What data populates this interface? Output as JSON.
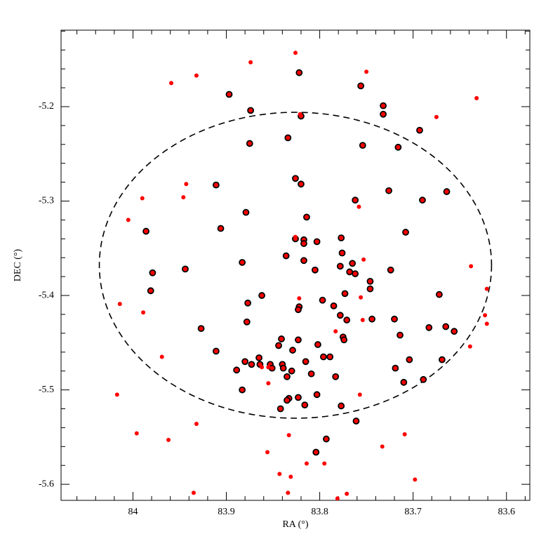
{
  "chart_data": {
    "type": "scatter",
    "x_label": "RA  (°)",
    "y_label": "DEC (°)",
    "xlim": [
      84.077,
      83.575
    ],
    "ylim": [
      -5.617,
      -5.119
    ],
    "xticks": [
      84,
      83.9,
      83.8,
      83.7,
      83.6
    ],
    "yticks": [
      -5.2,
      -5.3,
      -5.4,
      -5.5,
      -5.6
    ],
    "circle": {
      "center": [
        83.826,
        -5.368
      ],
      "radius_x": 0.21,
      "radius_y": 0.162,
      "color": "#000000",
      "dashed": true
    },
    "series": [
      {
        "color": "#ff0000",
        "edgecolor": "#000000",
        "x": [
          83.897,
          83.874,
          83.822,
          83.82,
          83.756,
          83.732,
          83.732,
          83.875,
          83.834,
          83.754,
          83.716,
          83.693,
          83.826,
          83.82,
          83.911,
          83.879,
          83.906,
          83.814,
          83.762,
          83.726,
          83.69,
          83.664,
          83.986,
          83.708,
          83.979,
          83.944,
          83.981,
          83.826,
          83.817,
          83.817,
          83.803,
          83.836,
          83.817,
          83.805,
          83.777,
          83.776,
          83.778,
          83.765,
          83.768,
          83.762,
          83.746,
          83.746,
          83.724,
          83.773,
          83.797,
          83.785,
          83.72,
          83.883,
          83.877,
          83.862,
          83.822,
          83.823,
          83.927,
          83.878,
          83.911,
          83.778,
          83.771,
          83.775,
          83.774,
          83.744,
          83.714,
          83.683,
          83.665,
          83.656,
          83.672,
          83.704,
          83.669,
          83.719,
          83.71,
          83.689,
          83.802,
          83.823,
          83.829,
          83.841,
          83.844,
          83.889,
          83.88,
          83.865,
          83.864,
          83.853,
          83.851,
          83.873,
          83.815,
          83.84,
          83.839,
          83.835,
          83.83,
          83.809,
          83.796,
          83.789,
          83.783,
          83.803,
          83.833,
          83.835,
          83.823,
          83.816,
          83.842,
          83.777,
          83.883,
          83.761,
          83.793,
          83.804
        ],
        "y": [
          -5.187,
          -5.204,
          -5.164,
          -5.21,
          -5.178,
          -5.208,
          -5.199,
          -5.239,
          -5.233,
          -5.241,
          -5.243,
          -5.225,
          -5.276,
          -5.282,
          -5.283,
          -5.312,
          -5.329,
          -5.317,
          -5.299,
          -5.289,
          -5.299,
          -5.29,
          -5.332,
          -5.333,
          -5.376,
          -5.372,
          -5.395,
          -5.34,
          -5.341,
          -5.345,
          -5.343,
          -5.358,
          -5.363,
          -5.373,
          -5.339,
          -5.355,
          -5.369,
          -5.366,
          -5.375,
          -5.377,
          -5.385,
          -5.393,
          -5.373,
          -5.398,
          -5.405,
          -5.411,
          -5.425,
          -5.365,
          -5.408,
          -5.4,
          -5.412,
          -5.415,
          -5.435,
          -5.428,
          -5.459,
          -5.421,
          -5.426,
          -5.444,
          -5.447,
          -5.425,
          -5.442,
          -5.434,
          -5.433,
          -5.438,
          -5.399,
          -5.468,
          -5.468,
          -5.477,
          -5.492,
          -5.489,
          -5.452,
          -5.447,
          -5.458,
          -5.446,
          -5.453,
          -5.479,
          -5.47,
          -5.466,
          -5.473,
          -5.473,
          -5.477,
          -5.473,
          -5.47,
          -5.473,
          -5.477,
          -5.486,
          -5.48,
          -5.483,
          -5.465,
          -5.465,
          -5.486,
          -5.505,
          -5.509,
          -5.511,
          -5.508,
          -5.516,
          -5.52,
          -5.517,
          -5.5,
          -5.533,
          -5.552,
          -5.566
        ]
      },
      {
        "color": "#ff0000",
        "x": [
          83.826,
          83.75,
          83.932,
          83.874,
          83.959,
          83.632,
          83.675,
          83.821,
          83.943,
          84.005,
          83.99,
          83.946,
          83.826,
          83.758,
          83.753,
          83.638,
          83.621,
          83.623,
          83.621,
          83.639,
          84.014,
          83.989,
          83.969,
          84.017,
          83.996,
          83.962,
          83.932,
          83.935,
          83.862,
          83.855,
          83.833,
          83.856,
          83.795,
          83.814,
          83.843,
          83.831,
          83.834,
          83.781,
          83.771,
          83.733,
          83.709,
          83.698,
          83.783,
          83.756,
          83.754,
          83.757,
          83.822,
          83.855
        ],
        "y": [
          -5.143,
          -5.163,
          -5.167,
          -5.153,
          -5.175,
          -5.191,
          -5.211,
          -5.208,
          -5.282,
          -5.32,
          -5.297,
          -5.296,
          -5.338,
          -5.306,
          -5.362,
          -5.369,
          -5.393,
          -5.421,
          -5.43,
          -5.454,
          -5.409,
          -5.418,
          -5.465,
          -5.505,
          -5.546,
          -5.553,
          -5.536,
          -5.609,
          -5.476,
          -5.493,
          -5.548,
          -5.566,
          -5.578,
          -5.578,
          -5.589,
          -5.592,
          -5.609,
          -5.615,
          -5.61,
          -5.56,
          -5.547,
          -5.595,
          -5.438,
          -5.402,
          -5.426,
          -5.505,
          -5.403,
          -5.476
        ]
      }
    ]
  }
}
